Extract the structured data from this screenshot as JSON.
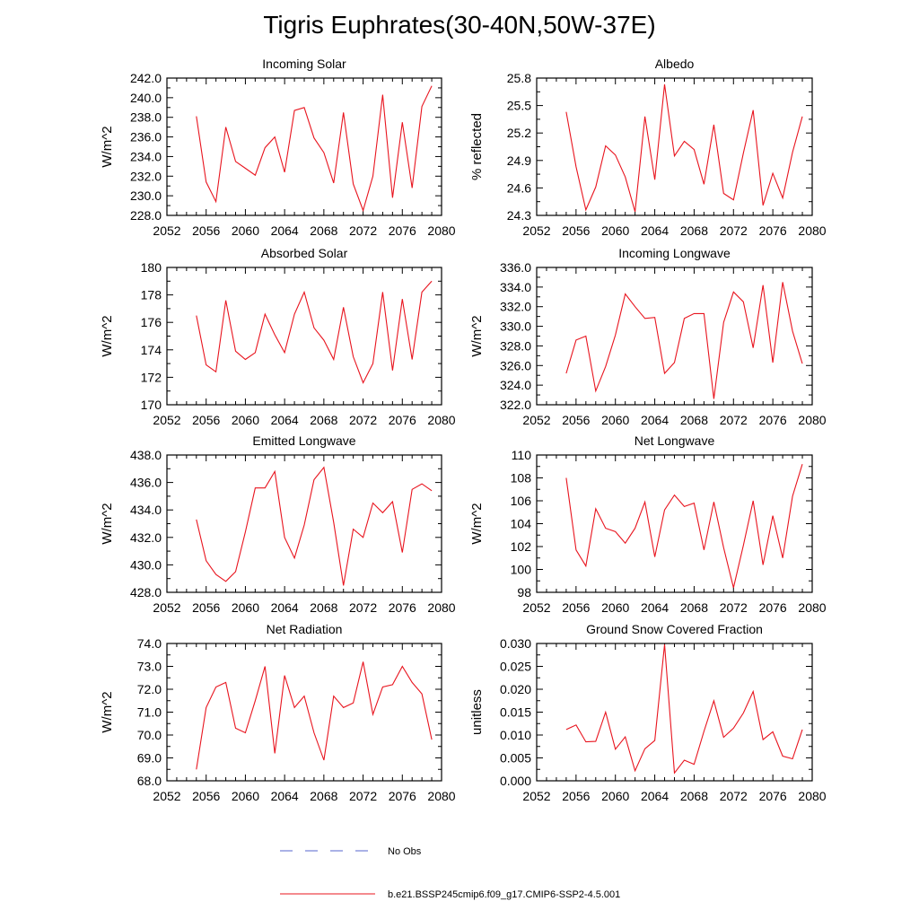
{
  "title": "Tigris Euphrates(30-40N,50W-37E)",
  "legend": {
    "obs_label": "No Obs",
    "model_label": "b.e21.BSSP245cmip6.f09_g17.CMIP6-SSP2-4.5.001",
    "obs_color": "#5566cc",
    "model_color": "#e8141e"
  },
  "chart_data": [
    {
      "type": "line",
      "title": "Incoming Solar",
      "ylabel": "W/m^2",
      "xlim": [
        2052,
        2080
      ],
      "ylim": [
        228.0,
        242.0
      ],
      "xticks": [
        2052,
        2056,
        2060,
        2064,
        2068,
        2072,
        2076,
        2080
      ],
      "yticks": [
        "228.0",
        "230.0",
        "232.0",
        "234.0",
        "236.0",
        "238.0",
        "240.0",
        "242.0"
      ],
      "x": [
        2055,
        2056,
        2057,
        2058,
        2059,
        2060,
        2061,
        2062,
        2063,
        2064,
        2065,
        2066,
        2067,
        2068,
        2069,
        2070,
        2071,
        2072,
        2073,
        2074,
        2075,
        2076,
        2077,
        2078,
        2079
      ],
      "values": [
        238.1,
        231.4,
        229.4,
        237.0,
        233.5,
        232.8,
        232.1,
        234.9,
        236.0,
        232.4,
        238.7,
        239.0,
        235.9,
        234.4,
        231.3,
        238.5,
        231.2,
        228.5,
        232.0,
        240.3,
        229.8,
        237.5,
        230.8,
        239.1,
        241.2
      ]
    },
    {
      "type": "line",
      "title": "Albedo",
      "ylabel": "% reflected",
      "xlim": [
        2052,
        2080
      ],
      "ylim": [
        24.3,
        25.8
      ],
      "xticks": [
        2052,
        2056,
        2060,
        2064,
        2068,
        2072,
        2076,
        2080
      ],
      "yticks": [
        "24.3",
        "24.6",
        "24.9",
        "25.2",
        "25.5",
        "25.8"
      ],
      "x": [
        2055,
        2056,
        2057,
        2058,
        2059,
        2060,
        2061,
        2062,
        2063,
        2064,
        2065,
        2066,
        2067,
        2068,
        2069,
        2070,
        2071,
        2072,
        2073,
        2074,
        2075,
        2076,
        2077,
        2078,
        2079
      ],
      "values": [
        25.43,
        24.83,
        24.36,
        24.61,
        25.06,
        24.96,
        24.72,
        24.34,
        25.38,
        24.69,
        25.73,
        24.95,
        25.11,
        25.02,
        24.64,
        25.29,
        24.54,
        24.47,
        24.98,
        25.45,
        24.41,
        24.76,
        24.49,
        24.99,
        25.38
      ]
    },
    {
      "type": "line",
      "title": "Absorbed Solar",
      "ylabel": "W/m^2",
      "xlim": [
        2052,
        2080
      ],
      "ylim": [
        170,
        180
      ],
      "xticks": [
        2052,
        2056,
        2060,
        2064,
        2068,
        2072,
        2076,
        2080
      ],
      "yticks": [
        "170",
        "172",
        "174",
        "176",
        "178",
        "180"
      ],
      "x": [
        2055,
        2056,
        2057,
        2058,
        2059,
        2060,
        2061,
        2062,
        2063,
        2064,
        2065,
        2066,
        2067,
        2068,
        2069,
        2070,
        2071,
        2072,
        2073,
        2074,
        2075,
        2076,
        2077,
        2078,
        2079
      ],
      "values": [
        176.5,
        172.9,
        172.4,
        177.6,
        173.9,
        173.3,
        173.8,
        176.6,
        175.1,
        173.8,
        176.6,
        178.2,
        175.6,
        174.7,
        173.3,
        177.1,
        173.5,
        171.6,
        173.0,
        178.2,
        172.5,
        177.7,
        173.3,
        178.2,
        179.0
      ]
    },
    {
      "type": "line",
      "title": "Incoming Longwave",
      "ylabel": "W/m^2",
      "xlim": [
        2052,
        2080
      ],
      "ylim": [
        322.0,
        336.0
      ],
      "xticks": [
        2052,
        2056,
        2060,
        2064,
        2068,
        2072,
        2076,
        2080
      ],
      "yticks": [
        "322.0",
        "324.0",
        "326.0",
        "328.0",
        "330.0",
        "332.0",
        "334.0",
        "336.0"
      ],
      "x": [
        2055,
        2056,
        2057,
        2058,
        2059,
        2060,
        2061,
        2062,
        2063,
        2064,
        2065,
        2066,
        2067,
        2068,
        2069,
        2070,
        2071,
        2072,
        2073,
        2074,
        2075,
        2076,
        2077,
        2078,
        2079
      ],
      "values": [
        325.2,
        328.6,
        329.0,
        323.4,
        325.9,
        329.1,
        333.3,
        332.0,
        330.8,
        330.9,
        325.2,
        326.3,
        330.8,
        331.3,
        331.3,
        322.6,
        330.4,
        333.5,
        332.5,
        327.8,
        334.2,
        326.3,
        334.5,
        329.5,
        326.2
      ]
    },
    {
      "type": "line",
      "title": "Emitted Longwave",
      "ylabel": "W/m^2",
      "xlim": [
        2052,
        2080
      ],
      "ylim": [
        428.0,
        438.0
      ],
      "xticks": [
        2052,
        2056,
        2060,
        2064,
        2068,
        2072,
        2076,
        2080
      ],
      "yticks": [
        "428.0",
        "430.0",
        "432.0",
        "434.0",
        "436.0",
        "438.0"
      ],
      "x": [
        2055,
        2056,
        2057,
        2058,
        2059,
        2060,
        2061,
        2062,
        2063,
        2064,
        2065,
        2066,
        2067,
        2068,
        2069,
        2070,
        2071,
        2072,
        2073,
        2074,
        2075,
        2076,
        2077,
        2078,
        2079
      ],
      "values": [
        433.3,
        430.3,
        429.3,
        428.8,
        429.5,
        432.4,
        435.6,
        435.6,
        436.8,
        432.0,
        430.5,
        432.9,
        436.2,
        437.1,
        433.1,
        428.5,
        432.6,
        432.0,
        434.5,
        433.8,
        434.6,
        430.9,
        435.5,
        435.9,
        435.4
      ]
    },
    {
      "type": "line",
      "title": "Net Longwave",
      "ylabel": "W/m^2",
      "xlim": [
        2052,
        2080
      ],
      "ylim": [
        98,
        110
      ],
      "xticks": [
        2052,
        2056,
        2060,
        2064,
        2068,
        2072,
        2076,
        2080
      ],
      "yticks": [
        "98",
        "100",
        "102",
        "104",
        "106",
        "108",
        "110"
      ],
      "x": [
        2055,
        2056,
        2057,
        2058,
        2059,
        2060,
        2061,
        2062,
        2063,
        2064,
        2065,
        2066,
        2067,
        2068,
        2069,
        2070,
        2071,
        2072,
        2073,
        2074,
        2075,
        2076,
        2077,
        2078,
        2079
      ],
      "values": [
        108.0,
        101.7,
        100.3,
        105.3,
        103.6,
        103.3,
        102.3,
        103.6,
        105.9,
        101.1,
        105.2,
        106.5,
        105.5,
        105.8,
        101.7,
        105.9,
        101.9,
        98.4,
        102.1,
        106.0,
        100.4,
        104.7,
        101.0,
        106.4,
        109.2
      ]
    },
    {
      "type": "line",
      "title": "Net Radiation",
      "ylabel": "W/m^2",
      "xlim": [
        2052,
        2080
      ],
      "ylim": [
        68.0,
        74.0
      ],
      "xticks": [
        2052,
        2056,
        2060,
        2064,
        2068,
        2072,
        2076,
        2080
      ],
      "yticks": [
        "68.0",
        "69.0",
        "70.0",
        "71.0",
        "72.0",
        "73.0",
        "74.0"
      ],
      "x": [
        2055,
        2056,
        2057,
        2058,
        2059,
        2060,
        2061,
        2062,
        2063,
        2064,
        2065,
        2066,
        2067,
        2068,
        2069,
        2070,
        2071,
        2072,
        2073,
        2074,
        2075,
        2076,
        2077,
        2078,
        2079
      ],
      "values": [
        68.5,
        71.2,
        72.1,
        72.3,
        70.3,
        70.1,
        71.5,
        73.0,
        69.2,
        72.6,
        71.2,
        71.7,
        70.1,
        68.9,
        71.7,
        71.2,
        71.4,
        73.2,
        70.9,
        72.1,
        72.2,
        73.0,
        72.3,
        71.8,
        69.8
      ]
    },
    {
      "type": "line",
      "title": "Ground Snow Covered Fraction",
      "ylabel": "unitless",
      "xlim": [
        2052,
        2080
      ],
      "ylim": [
        0.0,
        0.03
      ],
      "xticks": [
        2052,
        2056,
        2060,
        2064,
        2068,
        2072,
        2076,
        2080
      ],
      "yticks": [
        "0.000",
        "0.005",
        "0.010",
        "0.015",
        "0.020",
        "0.025",
        "0.030"
      ],
      "x": [
        2055,
        2056,
        2057,
        2058,
        2059,
        2060,
        2061,
        2062,
        2063,
        2064,
        2065,
        2066,
        2067,
        2068,
        2069,
        2070,
        2071,
        2072,
        2073,
        2074,
        2075,
        2076,
        2077,
        2078,
        2079
      ],
      "values": [
        0.0112,
        0.0122,
        0.0085,
        0.0086,
        0.015,
        0.0069,
        0.0096,
        0.0022,
        0.007,
        0.0088,
        0.0298,
        0.0017,
        0.0045,
        0.0036,
        0.0108,
        0.0175,
        0.0095,
        0.0115,
        0.0148,
        0.0195,
        0.009,
        0.0107,
        0.0054,
        0.0048,
        0.0112
      ]
    }
  ]
}
